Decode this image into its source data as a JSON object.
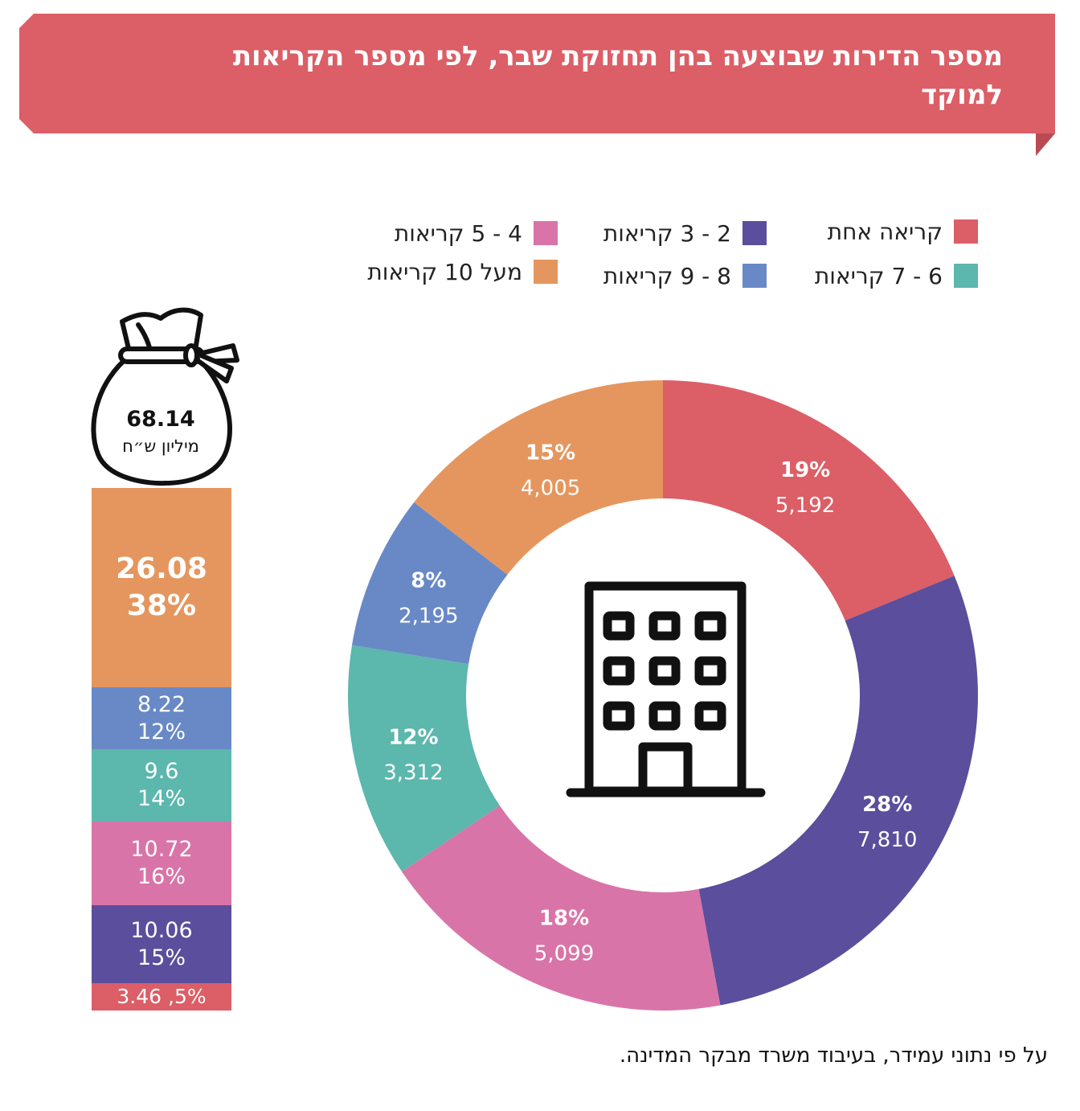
{
  "title": "מספר הדירות שבוצעה בהן תחזוקת שבר, לפי מספר הקריאות למוקד",
  "source_note": "על פי נתוני עמידר, בעיבוד משרד מבקר המדינה.",
  "colors": {
    "banner": "#DC5E66",
    "one_call": "#DC5E66",
    "two_three": "#5B4E9C",
    "four_five": "#D974A8",
    "six_seven": "#5CB7AD",
    "eight_nine": "#6889C6",
    "over_ten": "#E5965E"
  },
  "legend": [
    {
      "label": "קריאה אחת",
      "color": "#DC5E66"
    },
    {
      "label": "2 - 3 קריאות",
      "color": "#5B4E9C"
    },
    {
      "label": "4 - 5 קריאות",
      "color": "#D974A8"
    },
    {
      "label": "6 - 7 קריאות",
      "color": "#5CB7AD"
    },
    {
      "label": "8 - 9 קריאות",
      "color": "#6889C6"
    },
    {
      "label": "מעל 10 קריאות",
      "color": "#E5965E"
    }
  ],
  "total": {
    "value": "68.14",
    "unit": "מיליון ש״ח"
  },
  "stack": {
    "over_ten": {
      "value": "26.08",
      "pct": "38%"
    },
    "eight_nine": {
      "value": "8.22",
      "pct": "12%"
    },
    "six_seven": {
      "value": "9.6",
      "pct": "14%"
    },
    "four_five": {
      "value": "10.72",
      "pct": "16%"
    },
    "two_three": {
      "value": "10.06",
      "pct": "15%"
    },
    "one_call": {
      "text": "3.46 ,5%"
    }
  },
  "chart_data": [
    {
      "type": "pie",
      "categories": [
        "קריאה אחת",
        "2 - 3 קריאות",
        "4 - 5 קריאות",
        "6 - 7 קריאות",
        "8 - 9 קריאות",
        "מעל 10 קריאות"
      ],
      "values": [
        5192,
        7810,
        5099,
        3312,
        2195,
        4005
      ],
      "value_labels": [
        "5,192",
        "7,810",
        "5,099",
        "3,312",
        "2,195",
        "4,005"
      ],
      "percent_labels": [
        "19%",
        "28%",
        "18%",
        "12%",
        "8%",
        "15%"
      ],
      "colors": [
        "#DC5E66",
        "#5B4E9C",
        "#D974A8",
        "#5CB7AD",
        "#6889C6",
        "#E5965E"
      ],
      "donut": true,
      "start": "top",
      "direction": "clockwise"
    },
    {
      "type": "bar",
      "stacked": true,
      "categories": [
        "קריאה אחת",
        "2 - 3 קריאות",
        "4 - 5 קריאות",
        "6 - 7 קריאות",
        "8 - 9 קריאות",
        "מעל 10 קריאות"
      ],
      "values": [
        3.46,
        10.06,
        10.72,
        9.6,
        8.22,
        26.08
      ],
      "percent_values": [
        5,
        15,
        16,
        14,
        12,
        38
      ],
      "unit": "מיליון ש״ח"
    }
  ]
}
